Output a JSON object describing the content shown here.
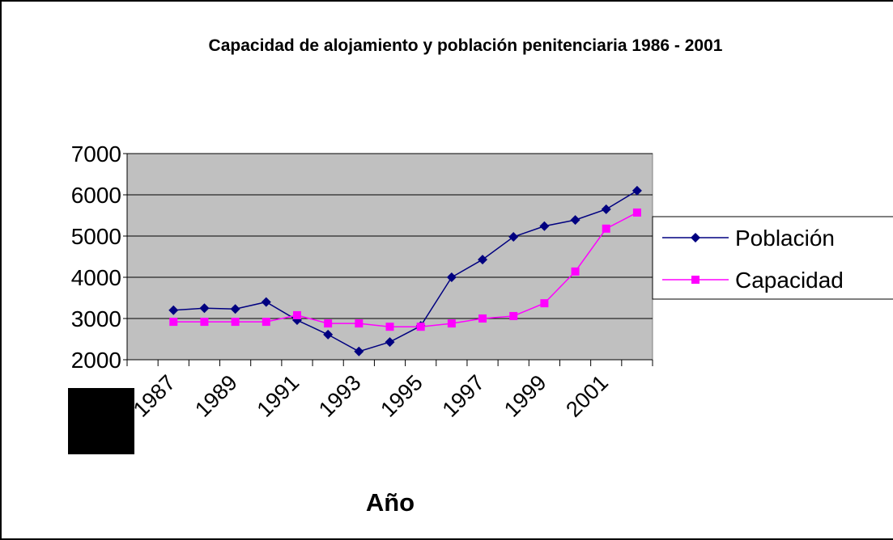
{
  "chart_data": {
    "type": "line",
    "title": "Capacidad de alojamiento y población penitenciaria 1986 - 2001",
    "x_label": "Año",
    "categories": [
      null,
      "1987",
      null,
      "1989",
      null,
      "1991",
      null,
      "1993",
      null,
      "1995",
      null,
      "1997",
      null,
      "1999",
      null,
      "2001",
      null
    ],
    "series": [
      {
        "name": "Población",
        "color": "#000080",
        "marker": "diamond",
        "values": [
          null,
          3200,
          3250,
          3230,
          3400,
          2960,
          2610,
          2200,
          2430,
          2820,
          4000,
          4430,
          4980,
          5240,
          5390,
          5650,
          6100
        ]
      },
      {
        "name": "Capacidad",
        "color": "#ff00ff",
        "marker": "square",
        "values": [
          null,
          2920,
          2920,
          2920,
          2920,
          3080,
          2880,
          2880,
          2800,
          2800,
          2880,
          3000,
          3060,
          3370,
          4140,
          5180,
          5570
        ]
      }
    ],
    "ylim": [
      2000,
      7000
    ],
    "yticks": [
      2000,
      3000,
      4000,
      5000,
      6000,
      7000
    ],
    "grid": true,
    "plot_background": "#c0c0c0",
    "legend": "right"
  }
}
